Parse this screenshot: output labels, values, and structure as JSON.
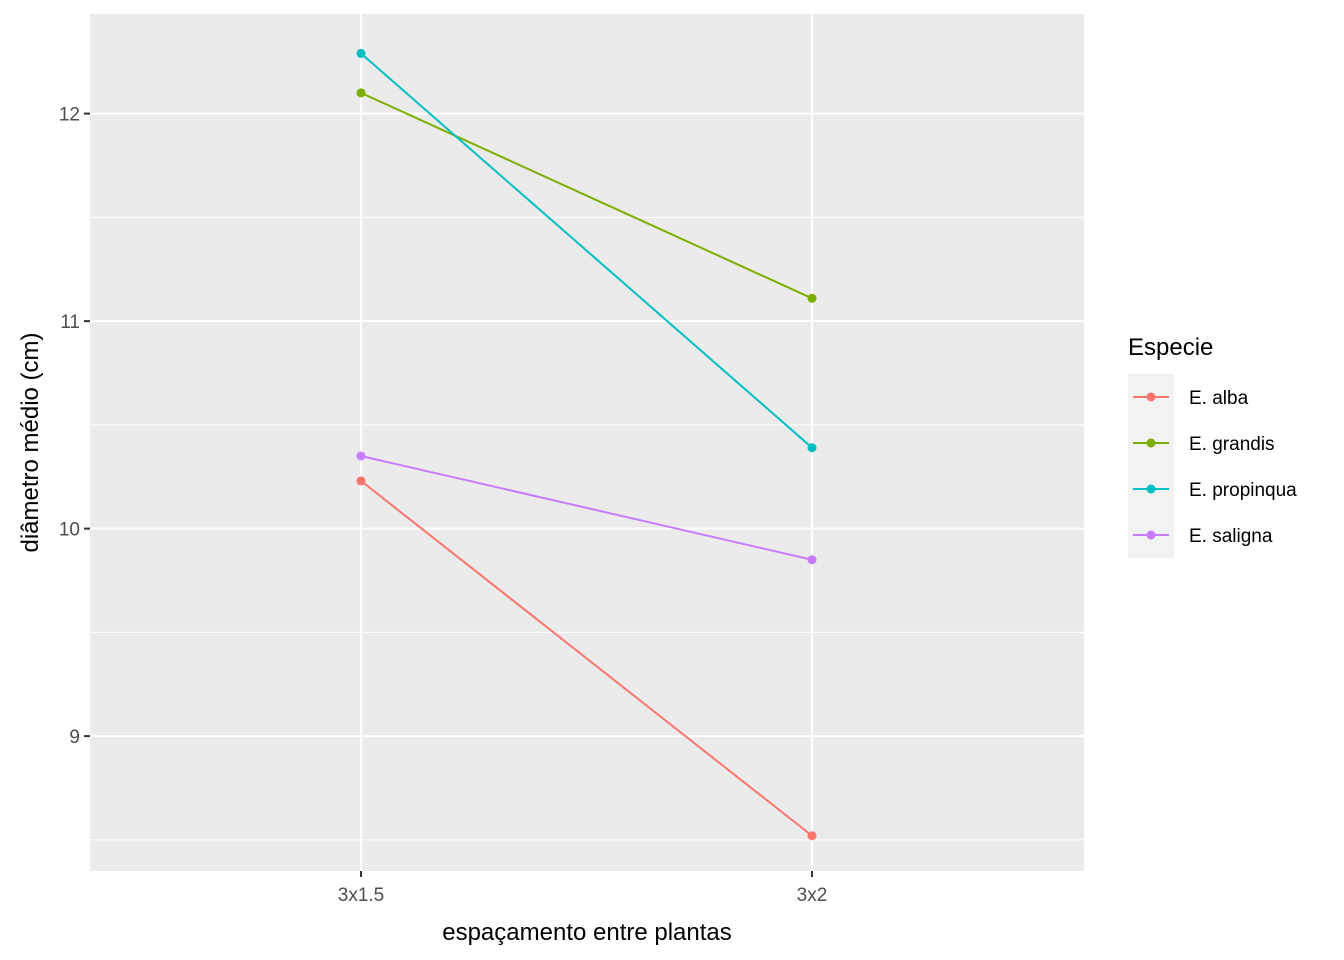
{
  "chart_data": {
    "type": "line",
    "categories": [
      "3x1.5",
      "3x2"
    ],
    "xlabel": "espaçamento entre plantas",
    "ylabel": "diâmetro médio (cm)",
    "ylim": [
      8.35,
      12.48
    ],
    "y_ticks": [
      9,
      10,
      11,
      12
    ],
    "y_tick_labels": [
      "9",
      "10",
      "11",
      "12"
    ],
    "grid": true,
    "legend": {
      "title": "Especie",
      "position": "right"
    },
    "series": [
      {
        "name": "E. alba",
        "color": "#F8766D",
        "values": [
          10.23,
          8.52
        ]
      },
      {
        "name": "E. grandis",
        "color": "#7CAE00",
        "values": [
          12.1,
          11.11
        ]
      },
      {
        "name": "E. propinqua",
        "color": "#00BFC4",
        "values": [
          12.29,
          10.39
        ]
      },
      {
        "name": "E. saligna",
        "color": "#C77CFF",
        "values": [
          10.35,
          9.85
        ]
      }
    ]
  }
}
